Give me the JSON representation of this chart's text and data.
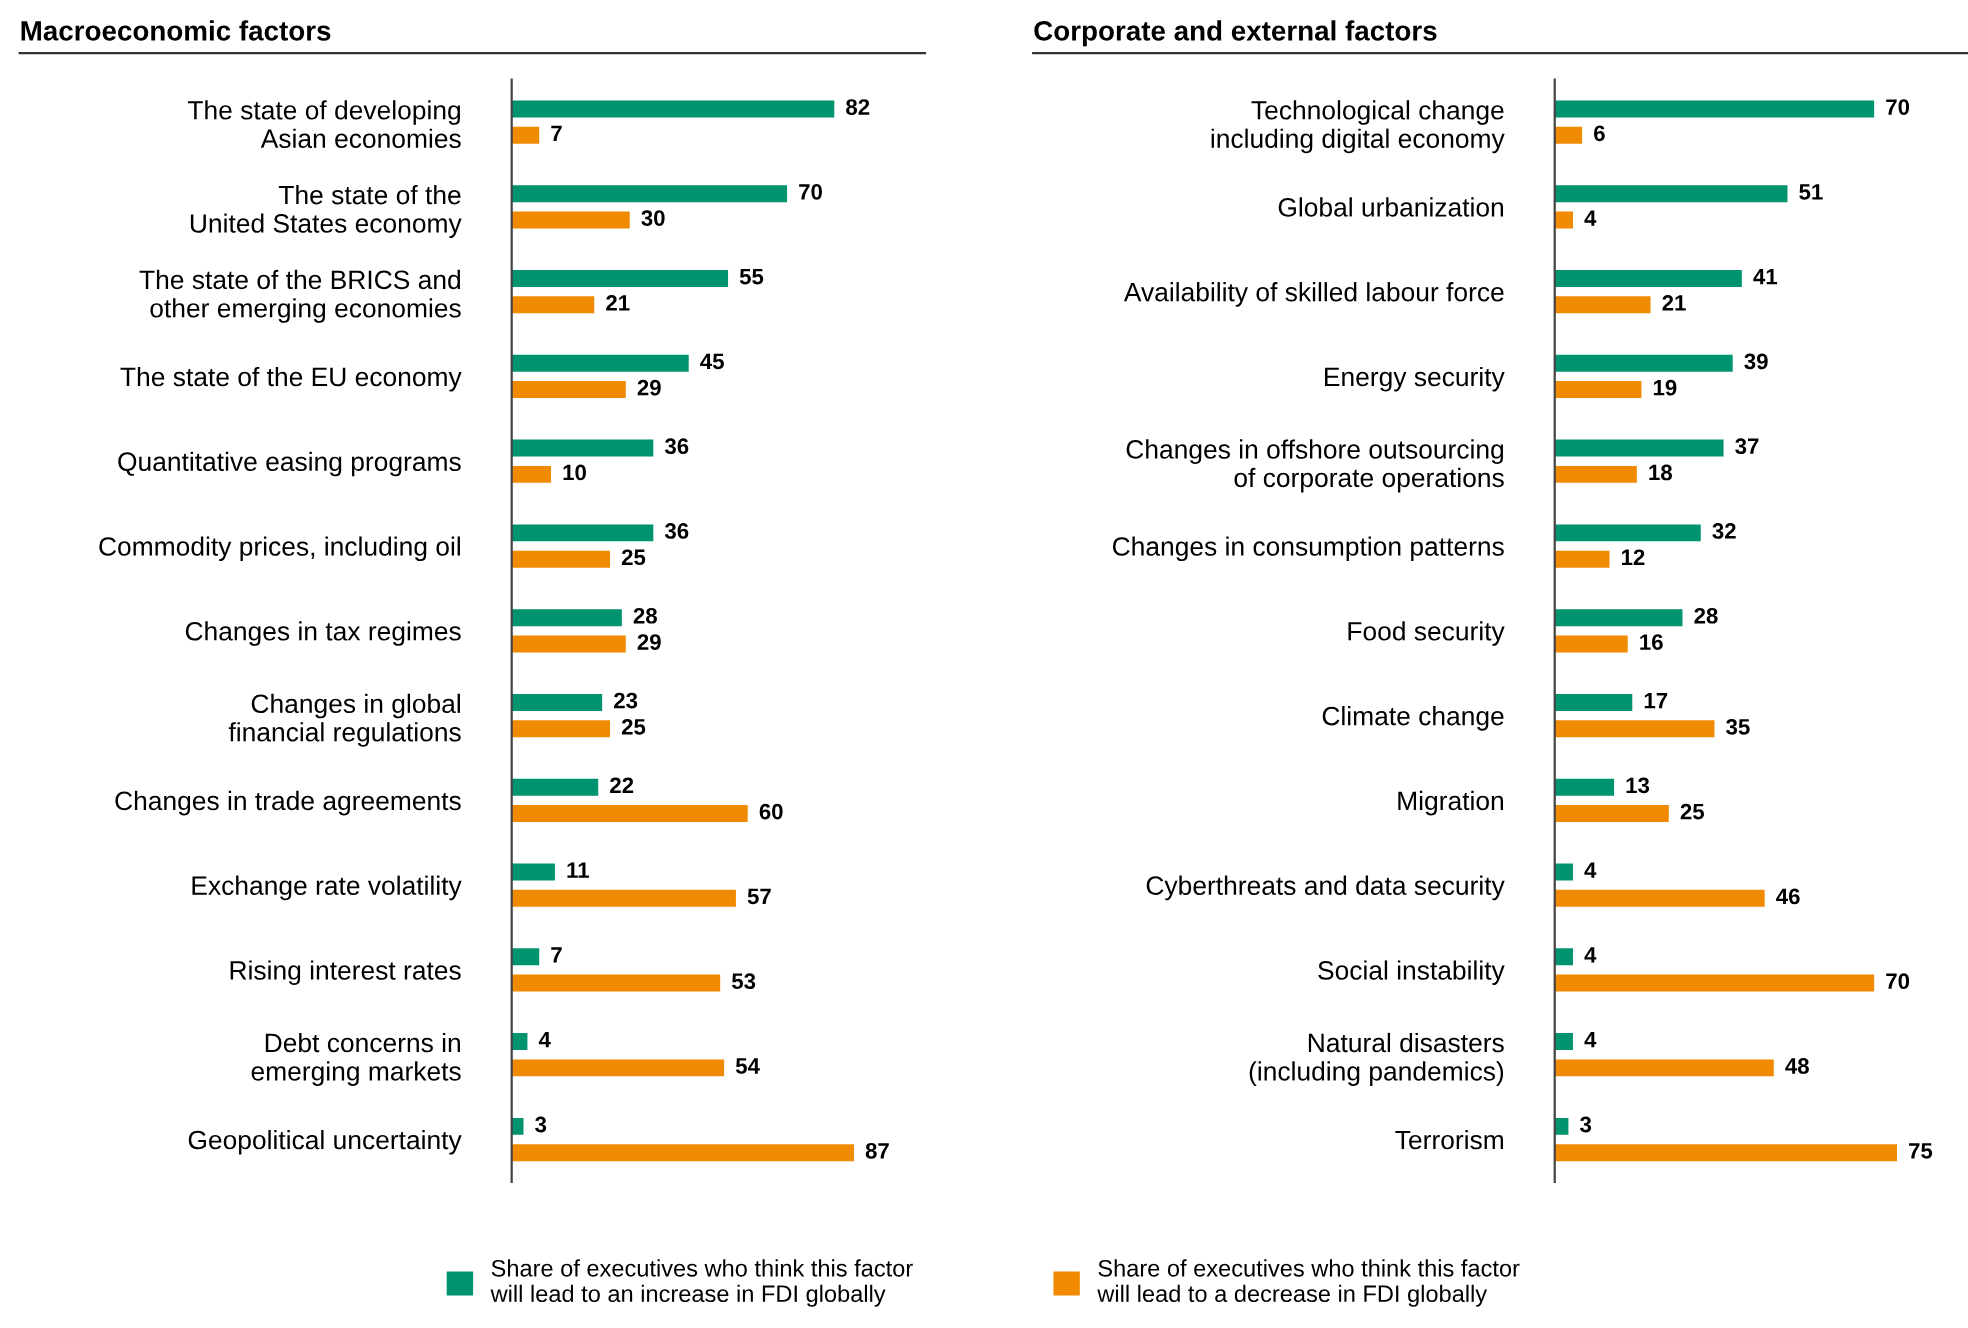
{
  "chart_data": [
    {
      "type": "bar",
      "orientation": "horizontal",
      "title": "Macroeconomic factors",
      "data_labels": true,
      "legend": "bottom",
      "grid": false,
      "categories": [
        "The state of developing\nAsian economies",
        "The state of the\nUnited States economy",
        "The state of the BRICS and\nother emerging economies",
        "The state of the EU economy",
        "Quantitative easing programs",
        "Commodity prices, including oil",
        "Changes in tax regimes",
        "Changes in global\nfinancial regulations",
        "Changes in trade agreements",
        "Exchange rate volatility",
        "Rising interest rates",
        "Debt concerns in\nemerging markets",
        "Geopolitical uncertainty"
      ],
      "series": [
        {
          "name": "Share of executives who think this factor\nwill lead to an increase in FDI globally",
          "color": "#00936f",
          "values": [
            82,
            70,
            55,
            45,
            36,
            36,
            28,
            23,
            22,
            11,
            7,
            4,
            3
          ]
        },
        {
          "name": "Share of executives who think this factor\nwill lead to a decrease in FDI globally",
          "color": "#f08a00",
          "values": [
            7,
            30,
            21,
            29,
            10,
            25,
            29,
            25,
            60,
            57,
            53,
            54,
            87
          ]
        }
      ]
    },
    {
      "type": "bar",
      "orientation": "horizontal",
      "title": "Corporate and external factors",
      "data_labels": true,
      "grid": false,
      "categories": [
        "Technological change\nincluding digital economy",
        "Global urbanization",
        "Availability of skilled labour force",
        "Energy security",
        "Changes in offshore outsourcing\nof corporate operations",
        "Changes in consumption patterns",
        "Food security",
        "Climate change",
        "Migration",
        "Cyberthreats and data security",
        "Social instability",
        "Natural disasters\n(including pandemics)",
        "Terrorism"
      ],
      "series": [
        {
          "color": "#00936f",
          "values": [
            70,
            51,
            41,
            39,
            37,
            32,
            28,
            17,
            13,
            4,
            4,
            4,
            3
          ]
        },
        {
          "color": "#f08a00",
          "values": [
            6,
            4,
            21,
            19,
            18,
            12,
            16,
            35,
            25,
            46,
            70,
            48,
            75
          ]
        }
      ]
    }
  ]
}
